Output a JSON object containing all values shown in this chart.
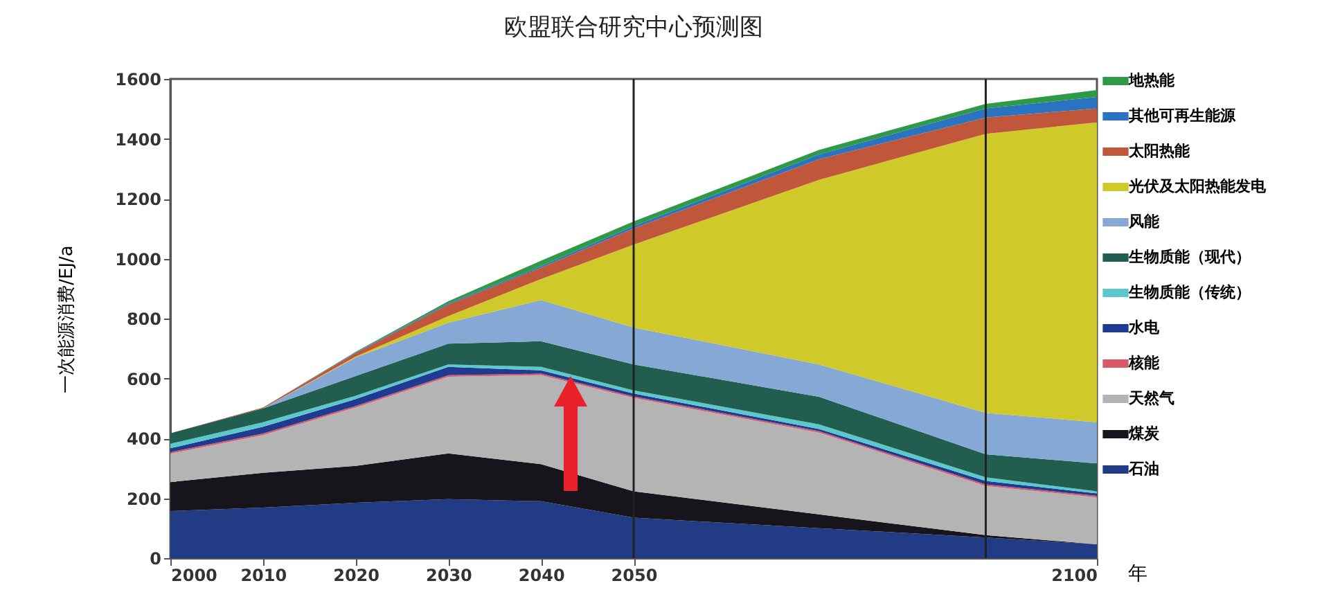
{
  "chart_data": {
    "type": "area",
    "stacked": true,
    "title": "欧盟联合研究中心预测图",
    "xlabel": "年",
    "ylabel": "一次能源消费/EJ/a",
    "x": [
      2000,
      2010,
      2020,
      2030,
      2040,
      2050,
      2070,
      2088,
      2100
    ],
    "xlim": [
      2000,
      2100
    ],
    "xticks": [
      2000,
      2010,
      2020,
      2030,
      2040,
      2050,
      2100
    ],
    "ylim": [
      0,
      1600
    ],
    "yticks": [
      0,
      200,
      400,
      600,
      800,
      1000,
      1200,
      1400,
      1600
    ],
    "legend": "right",
    "series": [
      {
        "name": "石油",
        "color": "#213b85",
        "values": [
          157,
          169,
          185,
          197,
          190,
          135,
          100,
          69,
          46
        ]
      },
      {
        "name": "煤炭",
        "color": "#17151b",
        "values": [
          97,
          116,
          123,
          153,
          124,
          88,
          46,
          8,
          0
        ]
      },
      {
        "name": "天然气",
        "color": "#b4b4b4",
        "values": [
          95,
          126,
          195,
          256,
          297,
          312,
          273,
          164,
          157
        ]
      },
      {
        "name": "核能",
        "color": "#d9596a",
        "values": [
          5,
          5,
          5,
          5,
          5,
          5,
          5,
          5,
          5
        ]
      },
      {
        "name": "水电",
        "color": "#1f3a8f",
        "values": [
          13,
          23,
          23,
          28,
          11,
          10,
          7,
          12,
          8
        ]
      },
      {
        "name": "生物质能（传统）",
        "color": "#5cc8cc",
        "values": [
          15,
          15,
          11,
          8,
          12,
          10,
          16,
          12,
          7
        ]
      },
      {
        "name": "生物质能（现代）",
        "color": "#225e50",
        "values": [
          35,
          46,
          66,
          69,
          85,
          87,
          92,
          77,
          93
        ]
      },
      {
        "name": "风能",
        "color": "#86a8d4",
        "values": [
          0,
          0,
          62,
          70,
          138,
          123,
          108,
          138,
          138
        ]
      },
      {
        "name": "光伏及太阳热能发电",
        "color": "#d0c92a",
        "values": [
          0,
          0,
          3,
          22,
          70,
          277,
          616,
          932,
          1001
        ]
      },
      {
        "name": "太阳热能",
        "color": "#c0573a",
        "values": [
          0,
          3,
          12,
          39,
          38,
          54,
          69,
          54,
          47
        ]
      },
      {
        "name": "其他可再生能源",
        "color": "#2a73c0",
        "values": [
          0,
          0,
          2,
          4,
          5,
          8,
          16,
          31,
          38
        ]
      },
      {
        "name": "地热能",
        "color": "#2e9a48",
        "values": [
          0,
          0,
          2,
          7,
          18,
          15,
          15,
          15,
          23
        ]
      }
    ],
    "ref_lines": [
      {
        "axis": "x",
        "value": 2050,
        "color": "#222222"
      },
      {
        "axis": "x",
        "value": 2088,
        "color": "#222222"
      }
    ]
  }
}
